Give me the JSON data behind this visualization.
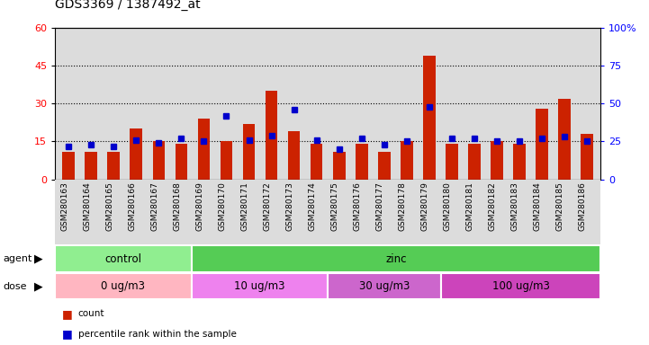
{
  "title": "GDS3369 / 1387492_at",
  "samples": [
    "GSM280163",
    "GSM280164",
    "GSM280165",
    "GSM280166",
    "GSM280167",
    "GSM280168",
    "GSM280169",
    "GSM280170",
    "GSM280171",
    "GSM280172",
    "GSM280173",
    "GSM280174",
    "GSM280175",
    "GSM280176",
    "GSM280177",
    "GSM280178",
    "GSM280179",
    "GSM280180",
    "GSM280181",
    "GSM280182",
    "GSM280183",
    "GSM280184",
    "GSM280185",
    "GSM280186"
  ],
  "count": [
    11,
    11,
    11,
    20,
    15,
    14,
    24,
    15,
    22,
    35,
    19,
    14,
    11,
    14,
    11,
    15,
    49,
    14,
    14,
    15,
    14,
    28,
    32,
    18
  ],
  "percentile": [
    22,
    23,
    22,
    26,
    24,
    27,
    25,
    42,
    26,
    29,
    46,
    26,
    20,
    27,
    23,
    25,
    48,
    27,
    27,
    25,
    25,
    27,
    28,
    25
  ],
  "agent_groups": [
    {
      "label": "control",
      "start": 0,
      "end": 5,
      "color": "#90EE90"
    },
    {
      "label": "zinc",
      "start": 6,
      "end": 23,
      "color": "#55CC55"
    }
  ],
  "dose_groups": [
    {
      "label": "0 ug/m3",
      "start": 0,
      "end": 5,
      "color": "#FFB6C1"
    },
    {
      "label": "10 ug/m3",
      "start": 6,
      "end": 11,
      "color": "#EE82EE"
    },
    {
      "label": "30 ug/m3",
      "start": 12,
      "end": 16,
      "color": "#CC66CC"
    },
    {
      "label": "100 ug/m3",
      "start": 17,
      "end": 23,
      "color": "#CC44BB"
    }
  ],
  "bar_color": "#CC2200",
  "dot_color": "#0000CC",
  "left_ylim": [
    0,
    60
  ],
  "right_ylim": [
    0,
    100
  ],
  "left_yticks": [
    0,
    15,
    30,
    45,
    60
  ],
  "right_yticks_vals": [
    0,
    25,
    50,
    75,
    100
  ],
  "right_yticks_labels": [
    "0",
    "25",
    "50",
    "75",
    "100%"
  ],
  "grid_values": [
    15,
    30,
    45
  ],
  "bar_width": 0.55,
  "plot_bg": "#DCDCDC",
  "label_bg": "#DCDCDC"
}
